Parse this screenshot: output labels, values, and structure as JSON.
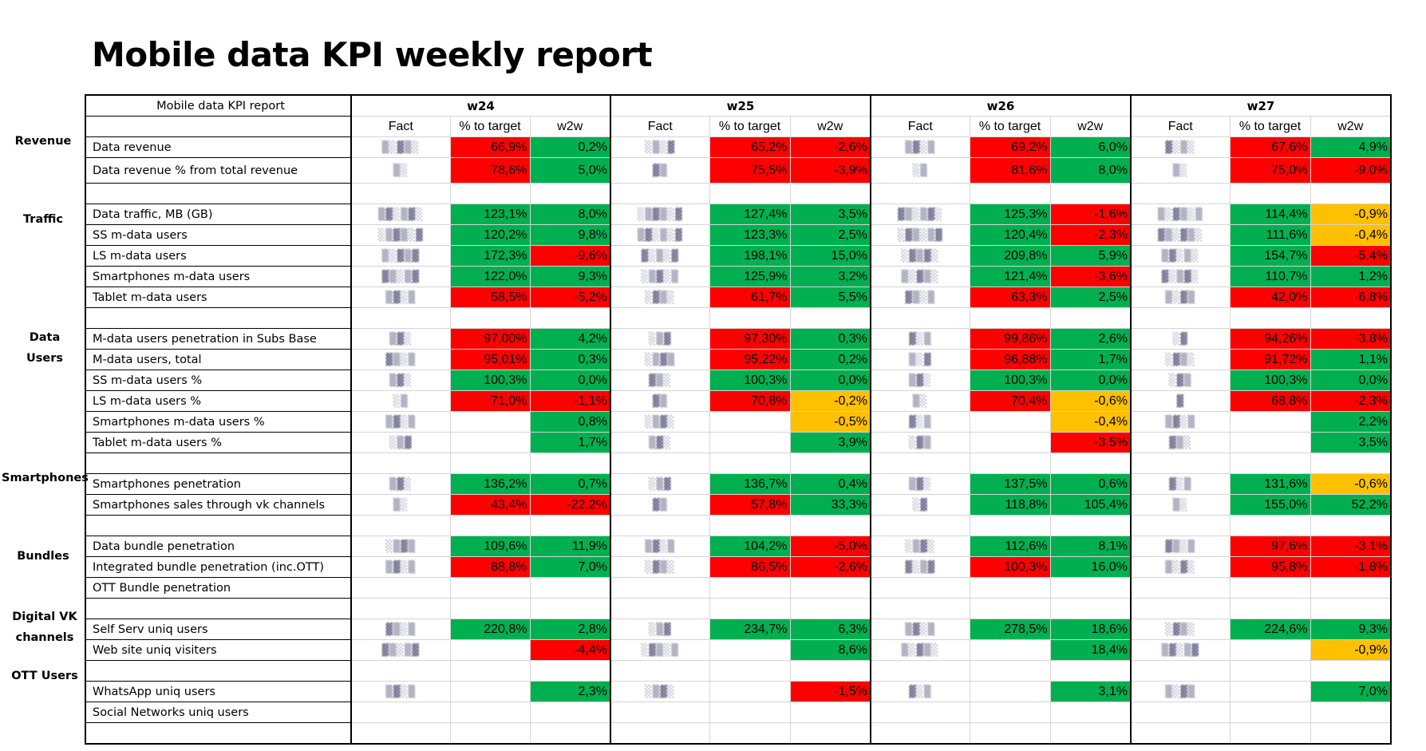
{
  "title": "Mobile data KPI weekly report",
  "header": {
    "corner": "Mobile data KPI report",
    "weeks": [
      "w24",
      "w25",
      "w26",
      "w27"
    ],
    "subcols": [
      "Fact",
      "% to target",
      "w2w"
    ]
  },
  "categories": {
    "revenue": "Revenue",
    "traffic": "Traffic",
    "data_users": "Data Users",
    "smartphones": "Smartphones",
    "bundles": "Bundles",
    "digital_1": "Digital VK",
    "digital_2": "channels",
    "ott": "OTT Users"
  },
  "colors": {
    "red": "#ff0000",
    "green": "#00b050",
    "amber": "#ffc000"
  },
  "fact_note": "Fact values are pixelated / obscured in the screenshot",
  "rows": [
    {
      "label": "Data revenue",
      "w": [
        [
          "66,9%",
          "r",
          "0,2%",
          "g"
        ],
        [
          "65,2%",
          "r",
          "-2,6%",
          "r"
        ],
        [
          "69,2%",
          "r",
          "6,0%",
          "g"
        ],
        [
          "67,6%",
          "r",
          "4,9%",
          "g"
        ]
      ]
    },
    {
      "label": "Data revenue % from total revenue",
      "w": [
        [
          "78,6%",
          "r",
          "5,0%",
          "g"
        ],
        [
          "75,5%",
          "r",
          "-3,9%",
          "r"
        ],
        [
          "81,6%",
          "r",
          "8,0%",
          "g"
        ],
        [
          "75,0%",
          "r",
          "-9,0%",
          "r"
        ]
      ]
    },
    {
      "label": "",
      "w": [
        [
          "",
          "",
          "",
          ""
        ],
        [
          "",
          "",
          "",
          ""
        ],
        [
          "",
          "",
          "",
          ""
        ],
        [
          "",
          "",
          "",
          ""
        ]
      ]
    },
    {
      "label": "Data traffic, MB (GB)",
      "w": [
        [
          "123,1%",
          "g",
          "8,0%",
          "g"
        ],
        [
          "127,4%",
          "g",
          "3,5%",
          "g"
        ],
        [
          "125,3%",
          "g",
          "-1,6%",
          "r"
        ],
        [
          "114,4%",
          "g",
          "-0,9%",
          "y"
        ]
      ]
    },
    {
      "label": "SS m-data users",
      "w": [
        [
          "120,2%",
          "g",
          "9,8%",
          "g"
        ],
        [
          "123,3%",
          "g",
          "2,5%",
          "g"
        ],
        [
          "120,4%",
          "g",
          "-2,3%",
          "r"
        ],
        [
          "111,6%",
          "g",
          "-0,4%",
          "y"
        ]
      ]
    },
    {
      "label": "LS m-data users",
      "w": [
        [
          "172,3%",
          "g",
          "-9,6%",
          "r"
        ],
        [
          "198,1%",
          "g",
          "15,0%",
          "g"
        ],
        [
          "209,8%",
          "g",
          "5,9%",
          "g"
        ],
        [
          "154,7%",
          "g",
          "-5,4%",
          "r"
        ]
      ]
    },
    {
      "label": "Smartphones m-data users",
      "w": [
        [
          "122,0%",
          "g",
          "9,3%",
          "g"
        ],
        [
          "125,9%",
          "g",
          "3,2%",
          "g"
        ],
        [
          "121,4%",
          "g",
          "-3,6%",
          "r"
        ],
        [
          "110,7%",
          "g",
          "1,2%",
          "g"
        ]
      ]
    },
    {
      "label": "Tablet m-data users",
      "w": [
        [
          "58,5%",
          "r",
          "-5,2%",
          "r"
        ],
        [
          "61,7%",
          "r",
          "5,5%",
          "g"
        ],
        [
          "63,3%",
          "r",
          "2,5%",
          "g"
        ],
        [
          "42,0%",
          "r",
          "-6,8%",
          "r"
        ]
      ]
    },
    {
      "label": "",
      "w": [
        [
          "",
          "",
          "",
          ""
        ],
        [
          "",
          "",
          "",
          ""
        ],
        [
          "",
          "",
          "",
          ""
        ],
        [
          "",
          "",
          "",
          ""
        ]
      ]
    },
    {
      "label": "M-data users penetration in Subs Base",
      "w": [
        [
          "97,00%",
          "r",
          "4,2%",
          "g"
        ],
        [
          "97,30%",
          "r",
          "0,3%",
          "g"
        ],
        [
          "99,86%",
          "r",
          "2,6%",
          "g"
        ],
        [
          "94,26%",
          "r",
          "-3,8%",
          "r"
        ]
      ]
    },
    {
      "label": "M-data users, total",
      "w": [
        [
          "95,01%",
          "r",
          "0,3%",
          "g"
        ],
        [
          "95,22%",
          "r",
          "0,2%",
          "g"
        ],
        [
          "96,88%",
          "r",
          "1,7%",
          "g"
        ],
        [
          "91,72%",
          "r",
          "1,1%",
          "g"
        ]
      ]
    },
    {
      "label": "SS m-data users %",
      "w": [
        [
          "100,3%",
          "g",
          "0,0%",
          "g"
        ],
        [
          "100,3%",
          "g",
          "0,0%",
          "g"
        ],
        [
          "100,3%",
          "g",
          "0,0%",
          "g"
        ],
        [
          "100,3%",
          "g",
          "0,0%",
          "g"
        ]
      ]
    },
    {
      "label": "LS m-data users %",
      "w": [
        [
          "71,0%",
          "r",
          "-1,1%",
          "r"
        ],
        [
          "70,8%",
          "r",
          "-0,2%",
          "y"
        ],
        [
          "70,4%",
          "r",
          "-0,6%",
          "y"
        ],
        [
          "68,8%",
          "r",
          "-2,3%",
          "r"
        ]
      ]
    },
    {
      "label": "Smartphones m-data users %",
      "w": [
        [
          "",
          "",
          "0,8%",
          "g"
        ],
        [
          "",
          "",
          "-0,5%",
          "y"
        ],
        [
          "",
          "",
          "-0,4%",
          "y"
        ],
        [
          "",
          "",
          "2,2%",
          "g"
        ]
      ]
    },
    {
      "label": "Tablet m-data users %",
      "w": [
        [
          "",
          "",
          "1,7%",
          "g"
        ],
        [
          "",
          "",
          "3,9%",
          "g"
        ],
        [
          "",
          "",
          "-3,5%",
          "r"
        ],
        [
          "",
          "",
          "3,5%",
          "g"
        ]
      ]
    },
    {
      "label": "",
      "w": [
        [
          "",
          "",
          "",
          ""
        ],
        [
          "",
          "",
          "",
          ""
        ],
        [
          "",
          "",
          "",
          ""
        ],
        [
          "",
          "",
          "",
          ""
        ]
      ]
    },
    {
      "label": "Smartphones  penetration",
      "w": [
        [
          "136,2%",
          "g",
          "0,7%",
          "g"
        ],
        [
          "136,7%",
          "g",
          "0,4%",
          "g"
        ],
        [
          "137,5%",
          "g",
          "0,6%",
          "g"
        ],
        [
          "131,6%",
          "g",
          "-0,6%",
          "y"
        ]
      ]
    },
    {
      "label": "Smartphones  sales through vk channels",
      "w": [
        [
          "43,4%",
          "r",
          "-22,2%",
          "r"
        ],
        [
          "57,8%",
          "r",
          "33,3%",
          "g"
        ],
        [
          "118,8%",
          "g",
          "105,4%",
          "g"
        ],
        [
          "155,0%",
          "g",
          "52,2%",
          "g"
        ]
      ]
    },
    {
      "label": "",
      "w": [
        [
          "",
          "",
          "",
          ""
        ],
        [
          "",
          "",
          "",
          ""
        ],
        [
          "",
          "",
          "",
          ""
        ],
        [
          "",
          "",
          "",
          ""
        ]
      ]
    },
    {
      "label": "Data bundle penetration",
      "w": [
        [
          "109,6%",
          "g",
          "11,9%",
          "g"
        ],
        [
          "104,2%",
          "g",
          "-5,0%",
          "r"
        ],
        [
          "112,6%",
          "g",
          "8,1%",
          "g"
        ],
        [
          "97,6%",
          "r",
          "-3,1%",
          "r"
        ]
      ]
    },
    {
      "label": "Integrated bundle penetration (inc.OTT)",
      "w": [
        [
          "88,8%",
          "r",
          "7,0%",
          "g"
        ],
        [
          "86,5%",
          "r",
          "-2,6%",
          "r"
        ],
        [
          "100,3%",
          "r",
          "16,0%",
          "g"
        ],
        [
          "95,8%",
          "r",
          "-1,8%",
          "r"
        ]
      ]
    },
    {
      "label": "OTT Bundle penetration",
      "w": [
        [
          "",
          "",
          "",
          ""
        ],
        [
          "",
          "",
          "",
          ""
        ],
        [
          "",
          "",
          "",
          ""
        ],
        [
          "",
          "",
          "",
          ""
        ]
      ]
    },
    {
      "label": "",
      "w": [
        [
          "",
          "",
          "",
          ""
        ],
        [
          "",
          "",
          "",
          ""
        ],
        [
          "",
          "",
          "",
          ""
        ],
        [
          "",
          "",
          "",
          ""
        ]
      ]
    },
    {
      "label": "Self Serv uniq users",
      "w": [
        [
          "220,8%",
          "g",
          "2,8%",
          "g"
        ],
        [
          "234,7%",
          "g",
          "6,3%",
          "g"
        ],
        [
          "278,5%",
          "g",
          "18,6%",
          "g"
        ],
        [
          "224,6%",
          "g",
          "9,3%",
          "g"
        ]
      ]
    },
    {
      "label": "Web site uniq visiters",
      "w": [
        [
          "",
          "",
          "-4,4%",
          "r"
        ],
        [
          "",
          "",
          "8,6%",
          "g"
        ],
        [
          "",
          "",
          "18,4%",
          "g"
        ],
        [
          "",
          "",
          "-0,9%",
          "y"
        ]
      ]
    },
    {
      "label": "",
      "w": [
        [
          "",
          "",
          "",
          ""
        ],
        [
          "",
          "",
          "",
          ""
        ],
        [
          "",
          "",
          "",
          ""
        ],
        [
          "",
          "",
          "",
          ""
        ]
      ]
    },
    {
      "label": "WhatsApp uniq users",
      "w": [
        [
          "",
          "",
          "2,3%",
          "g"
        ],
        [
          "",
          "",
          "-1,5%",
          "r"
        ],
        [
          "",
          "",
          "3,1%",
          "g"
        ],
        [
          "",
          "",
          "7,0%",
          "g"
        ]
      ]
    },
    {
      "label": "Social Networks uniq users",
      "w": [
        [
          "",
          "",
          "",
          ""
        ],
        [
          "",
          "",
          "",
          ""
        ],
        [
          "",
          "",
          "",
          ""
        ],
        [
          "",
          "",
          "",
          ""
        ]
      ]
    },
    {
      "label": "",
      "w": [
        [
          "",
          "",
          "",
          ""
        ],
        [
          "",
          "",
          "",
          ""
        ],
        [
          "",
          "",
          "",
          ""
        ],
        [
          "",
          "",
          "",
          ""
        ]
      ]
    }
  ],
  "fact_placeholders": [
    [
      "▒░▓▒░",
      "░▒░▓",
      "▒▓░▒",
      "▓░▒░"
    ],
    [
      "▒░",
      "▓▒",
      "░▒",
      "▒░"
    ],
    [
      "",
      "",
      "",
      ""
    ],
    [
      "▒▓░▒▓░",
      "░▒▓▒░▓",
      "▓▒░▒▓░",
      "▒░▓▒░▒"
    ],
    [
      "░▒▓▒░▓",
      "▒▓░▒░▓",
      "░▓▒░▒▓",
      "▓▒░▓▒░"
    ],
    [
      "▒░▓▒▓",
      "▓░▒░▓",
      "░▓▒▓░",
      "▒▓░▒░"
    ],
    [
      "▓▒░▒▓",
      "░▒▓░▒",
      "▒░▓▒░",
      "▓░▒▓░"
    ],
    [
      "▒▓░▒",
      "░▓▒░",
      "▓▒░▒",
      "▒░▓▒"
    ],
    [
      "",
      "",
      "",
      ""
    ],
    [
      "▒▓░",
      "░▒▓",
      "▓░▒",
      "░▓"
    ],
    [
      "▓▒░▒",
      "░▒▓▒",
      "▒░▓",
      "░▓▒░"
    ],
    [
      "▒▓░",
      "▓▒░",
      "▒▓░",
      "░▓▒"
    ],
    [
      "░▒",
      "▓▒",
      "▒░",
      "▓"
    ],
    [
      "▒▓░▒",
      "░▒▓░",
      "▓░▒",
      "▒▓░▒"
    ],
    [
      "░▒▓",
      "▒▓░",
      "░▓▒",
      "▓▒░"
    ],
    [
      "",
      "",
      "",
      ""
    ],
    [
      "▒▓░",
      "░▒▓",
      "▒▓░",
      "▓░▒"
    ],
    [
      "▒░",
      "▓▒",
      "░▓",
      "▒░"
    ],
    [
      "",
      "",
      "",
      ""
    ],
    [
      "░▒▓▒",
      "▒▓░▒",
      "░▒▓░",
      "▓▒░▒"
    ],
    [
      "▒▓░▒",
      "░▓▒░",
      "▓░▒▓",
      "▒░▓░"
    ],
    [
      "",
      "",
      "",
      ""
    ],
    [
      "",
      "",
      "",
      ""
    ],
    [
      "▓▒░▒",
      "░▒▓",
      "▒▓░▒",
      "░▓▒░"
    ],
    [
      "▓▒░▒▓",
      "░▓▒░▒",
      "▒░▓▒░",
      "▒▓░▒▓"
    ],
    [
      "",
      "",
      "",
      ""
    ],
    [
      "▒▓░▒",
      "░▒▓░",
      "▓░▒",
      "▒░▓▒"
    ],
    [
      "",
      "",
      "",
      ""
    ],
    [
      "",
      "",
      "",
      ""
    ]
  ]
}
